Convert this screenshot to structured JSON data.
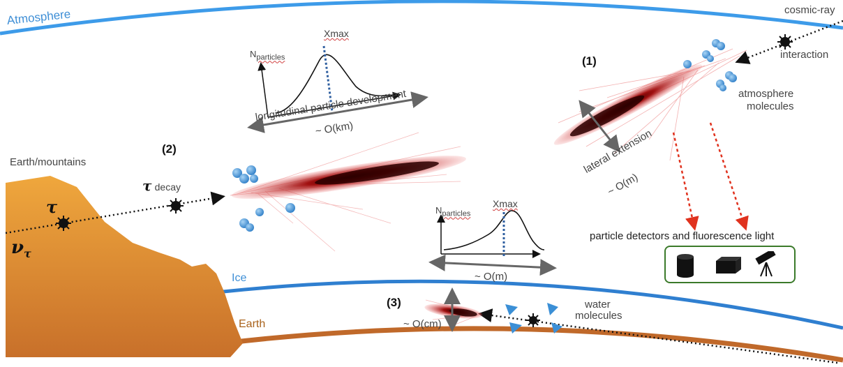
{
  "labels": {
    "atmosphere": "Atmosphere",
    "cosmic_ray": "cosmic-ray",
    "interaction": "interaction",
    "step1": "(1)",
    "atmosphere_molecules_1": "atmosphere",
    "atmosphere_molecules_2": "molecules",
    "lateral_extension_1": "lateral extension",
    "lateral_extension_2": "~ O(m)",
    "particle_detectors": "particle detectors and fluorescence light",
    "xmax_top": "Xmax",
    "n_particles_top_main": "N",
    "n_particles_top_sub": "particles",
    "longitudinal_1": "longitudinal particle development",
    "longitudinal_2": "~ O(km)",
    "step2": "(2)",
    "earth_mountains": "Earth/mountains",
    "tau_decay_symbol": "τ",
    "tau_decay_word": "decay",
    "tau_symbol": "τ",
    "nu_tau_main": "ν",
    "nu_tau_sub": "τ",
    "xmax_mid": "Xmax",
    "n_particles_mid_main": "N",
    "n_particles_mid_sub": "particles",
    "o_m": "~ O(m)",
    "ice": "Ice",
    "step3": "(3)",
    "water_molecules_1": "water",
    "water_molecules_2": "molecules",
    "o_cm": "~ O(cm)",
    "earth": "Earth"
  },
  "colors": {
    "atmosphere_line": "#3d9be9",
    "ice_line": "#2f7fd0",
    "earth_line": "#c0692a",
    "mountain": "#e39a35",
    "shower": "#c81e1e",
    "detector_border": "#3b7a2a",
    "guide_arrow": "#e0321e"
  },
  "icons": [
    "sun-interaction-icon",
    "sun-decay-icon",
    "sun-tau-icon",
    "sun-ice-icon",
    "cylinder-detector-icon",
    "box-detector-icon",
    "telescope-icon"
  ]
}
